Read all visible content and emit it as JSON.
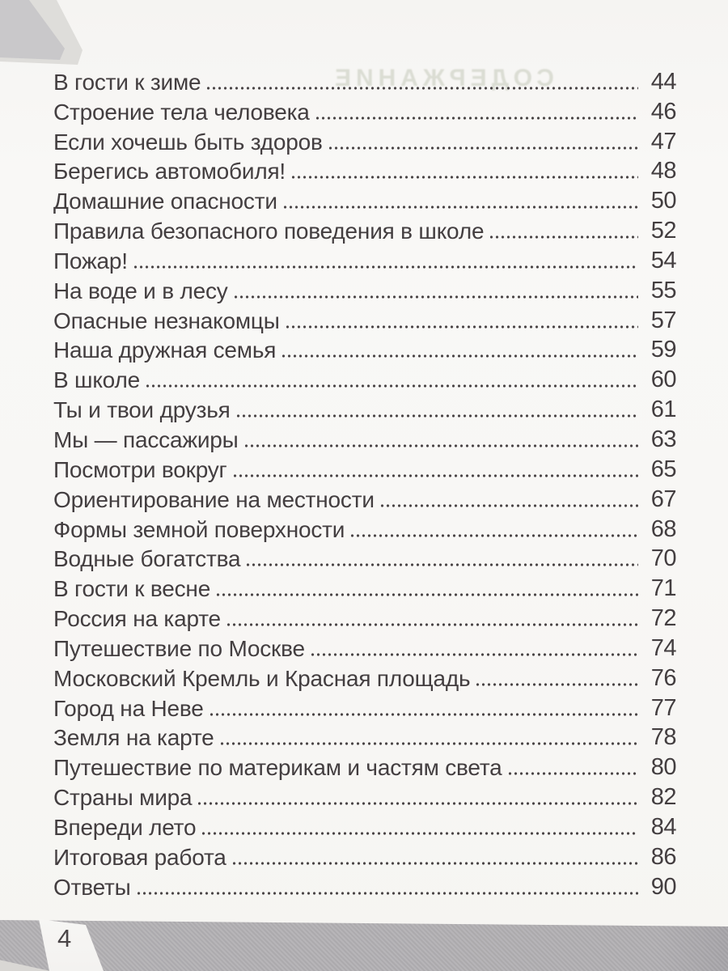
{
  "page": {
    "ghost_title": "СОДЕРЖАНИЕ",
    "footer_page_number": "4"
  },
  "toc_entries": [
    {
      "title": "В гости к зиме",
      "page": "44"
    },
    {
      "title": "Строение тела человека",
      "page": "46"
    },
    {
      "title": "Если хочешь быть здоров",
      "page": "47"
    },
    {
      "title": "Берегись автомобиля!",
      "page": "48"
    },
    {
      "title": "Домашние опасности",
      "page": "50"
    },
    {
      "title": "Правила безопасного поведения в школе",
      "page": "52"
    },
    {
      "title": "Пожар!",
      "page": "54"
    },
    {
      "title": "На воде и в лесу",
      "page": "55"
    },
    {
      "title": "Опасные незнакомцы",
      "page": "57"
    },
    {
      "title": "Наша дружная семья",
      "page": "59"
    },
    {
      "title": "В школе",
      "page": "60"
    },
    {
      "title": "Ты и твои друзья",
      "page": "61"
    },
    {
      "title": "Мы — пассажиры",
      "page": "63"
    },
    {
      "title": "Посмотри вокруг",
      "page": "65"
    },
    {
      "title": "Ориентирование на местности",
      "page": "67"
    },
    {
      "title": "Формы земной поверхности",
      "page": "68"
    },
    {
      "title": "Водные богатства",
      "page": "70"
    },
    {
      "title": "В гости к весне",
      "page": "71"
    },
    {
      "title": "Россия на карте",
      "page": "72"
    },
    {
      "title": "Путешествие по Москве",
      "page": "74"
    },
    {
      "title": "Московский Кремль и Красная площадь",
      "page": "76"
    },
    {
      "title": "Город на Неве",
      "page": "77"
    },
    {
      "title": "Земля на карте",
      "page": "78"
    },
    {
      "title": "Путешествие по материкам и частям света",
      "page": "80"
    },
    {
      "title": "Страны мира",
      "page": "82"
    },
    {
      "title": "Впереди лето",
      "page": "84"
    },
    {
      "title": "Итоговая работа",
      "page": "86"
    },
    {
      "title": "Ответы",
      "page": "90"
    }
  ],
  "colors": {
    "text": "#433e40",
    "dot_leader": "#474243",
    "paper": "#f8f7f5",
    "footer_band": "#b2b0b3",
    "corner_gray": "#c9c8ca",
    "ghost_text": "#aeb5a0"
  }
}
